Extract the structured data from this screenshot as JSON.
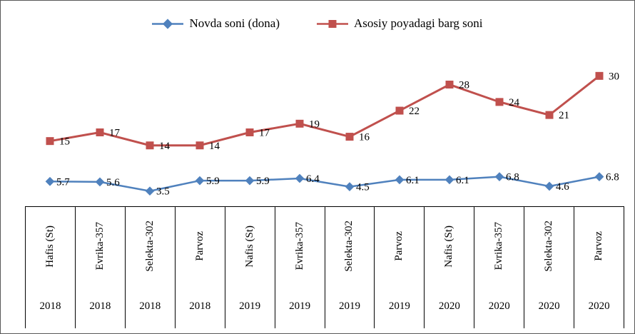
{
  "legend": [
    {
      "label": "Novda soni (dona)",
      "color": "#4F81BD",
      "marker": "diamond"
    },
    {
      "label": "Asosiy poyadagi barg soni",
      "color": "#C0504D",
      "marker": "square"
    }
  ],
  "chart_data": {
    "type": "line",
    "categories": [
      {
        "name": "Hafis (St)",
        "year": "2018"
      },
      {
        "name": "Evrika-357",
        "year": "2018"
      },
      {
        "name": "Selekta-302",
        "year": "2018"
      },
      {
        "name": "Parvoz",
        "year": "2018"
      },
      {
        "name": "Nafis (St)",
        "year": "2019"
      },
      {
        "name": "Evrika-357",
        "year": "2019"
      },
      {
        "name": "Selekta-302",
        "year": "2019"
      },
      {
        "name": "Parvoz",
        "year": "2019"
      },
      {
        "name": "Nafis (St)",
        "year": "2020"
      },
      {
        "name": "Evrika-357",
        "year": "2020"
      },
      {
        "name": "Selekta-302",
        "year": "2020"
      },
      {
        "name": "Parvoz",
        "year": "2020"
      }
    ],
    "series": [
      {
        "name": "Novda soni (dona)",
        "color": "#4F81BD",
        "marker": "diamond",
        "values": [
          5.7,
          5.6,
          3.5,
          5.9,
          5.9,
          6.4,
          4.5,
          6.1,
          6.1,
          6.8,
          4.6,
          6.8
        ]
      },
      {
        "name": "Asosiy poyadagi barg soni",
        "color": "#C0504D",
        "marker": "square",
        "values": [
          15,
          17,
          14,
          14,
          17,
          19,
          16,
          22,
          28,
          24,
          21,
          30
        ]
      }
    ],
    "ylim": [
      0,
      45
    ],
    "grid": false,
    "legend_position": "top",
    "xlabel": "",
    "ylabel": "",
    "title": ""
  }
}
